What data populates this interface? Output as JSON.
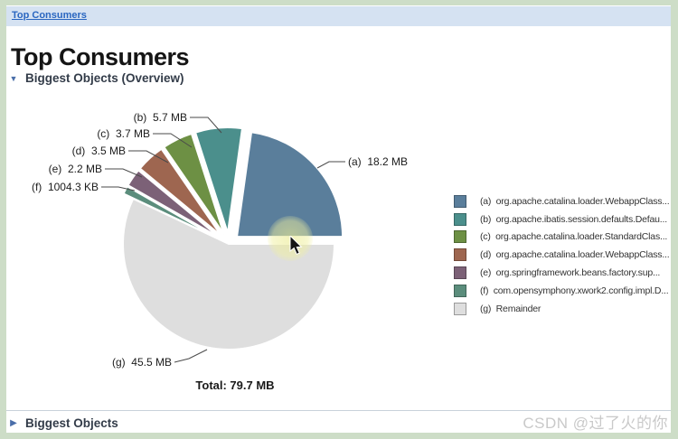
{
  "page": {
    "breadcrumb_link": "Top Consumers",
    "title": "Top Consumers",
    "section_overview": "Biggest Objects (Overview)",
    "section_bottom": "Biggest Objects",
    "watermark": "CSDN @过了火的你"
  },
  "chart_data": {
    "type": "pie",
    "title": "Biggest Objects (Overview)",
    "total_label": "Total: 79.7 MB",
    "legend_position": "right",
    "slices": [
      {
        "key": "a",
        "label": "org.apache.catalina.loader.WebappClass...",
        "value_mb": 18.2,
        "display": "18.2 MB",
        "color": "#5a7e9b"
      },
      {
        "key": "b",
        "label": "org.apache.ibatis.session.defaults.Defau...",
        "value_mb": 5.7,
        "display": "5.7 MB",
        "color": "#4b8f8c"
      },
      {
        "key": "c",
        "label": "org.apache.catalina.loader.StandardClas...",
        "value_mb": 3.7,
        "display": "3.7 MB",
        "color": "#6d9044"
      },
      {
        "key": "d",
        "label": "org.apache.catalina.loader.WebappClass...",
        "value_mb": 3.5,
        "display": "3.5 MB",
        "color": "#9e6650"
      },
      {
        "key": "e",
        "label": "org.springframework.beans.factory.sup...",
        "value_mb": 2.2,
        "display": "2.2 MB",
        "color": "#7c6177"
      },
      {
        "key": "f",
        "label": "com.opensymphony.xwork2.config.impl.D...",
        "value_mb": 0.98,
        "display": "1004.3 KB",
        "color": "#5b8d7c"
      },
      {
        "key": "g",
        "label": "Remainder",
        "value_mb": 45.5,
        "display": "45.5 MB",
        "color": "#dedede"
      }
    ]
  }
}
